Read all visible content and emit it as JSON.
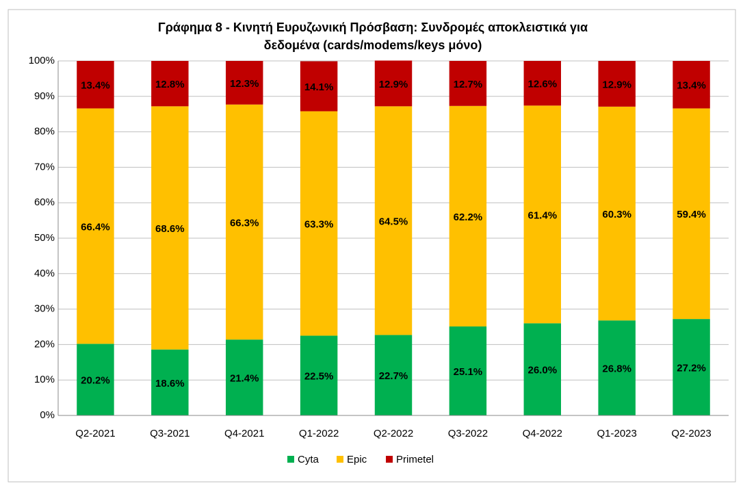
{
  "chart_data": {
    "type": "stacked_bar",
    "title": [
      "Γράφημα 8 - Κινητή Ευρυζωνική Πρόσβαση: Συνδρομές αποκλειστικά για",
      "δεδομένα (cards/modems/keys μόνο)"
    ],
    "categories": [
      "Q2-2021",
      "Q3-2021",
      "Q4-2021",
      "Q1-2022",
      "Q2-2022",
      "Q3-2022",
      "Q4-2022",
      "Q1-2023",
      "Q2-2023"
    ],
    "series": [
      {
        "name": "Cyta",
        "color": "#00b050",
        "values": [
          20.2,
          18.6,
          21.4,
          22.5,
          22.7,
          25.1,
          26.0,
          26.8,
          27.2
        ],
        "value_labels": [
          "20.2%",
          "18.6%",
          "21.4%",
          "22.5%",
          "22.7%",
          "25.1%",
          "26.0%",
          "26.8%",
          "27.2%"
        ]
      },
      {
        "name": "Epic",
        "color": "#ffc000",
        "values": [
          66.4,
          68.6,
          66.3,
          63.3,
          64.5,
          62.2,
          61.4,
          60.3,
          59.4
        ],
        "value_labels": [
          "66.4%",
          "68.6%",
          "66.3%",
          "63.3%",
          "64.5%",
          "62.2%",
          "61.4%",
          "60.3%",
          "59.4%"
        ]
      },
      {
        "name": "Primetel",
        "color": "#c00000",
        "values": [
          13.4,
          12.8,
          12.3,
          14.1,
          12.9,
          12.7,
          12.6,
          12.9,
          13.4
        ],
        "value_labels": [
          "13.4%",
          "12.8%",
          "12.3%",
          "14.1%",
          "12.9%",
          "12.7%",
          "12.6%",
          "12.9%",
          "13.4%"
        ]
      }
    ],
    "ylim": [
      0,
      100
    ],
    "yticks": [
      {
        "value": 0,
        "label": "0%"
      },
      {
        "value": 10,
        "label": "10%"
      },
      {
        "value": 20,
        "label": "20%"
      },
      {
        "value": 30,
        "label": "30%"
      },
      {
        "value": 40,
        "label": "40%"
      },
      {
        "value": 50,
        "label": "50%"
      },
      {
        "value": 60,
        "label": "60%"
      },
      {
        "value": 70,
        "label": "70%"
      },
      {
        "value": 80,
        "label": "80%"
      },
      {
        "value": 90,
        "label": "90%"
      },
      {
        "value": 100,
        "label": "100%"
      }
    ],
    "grid": true,
    "legend": "bottom"
  }
}
